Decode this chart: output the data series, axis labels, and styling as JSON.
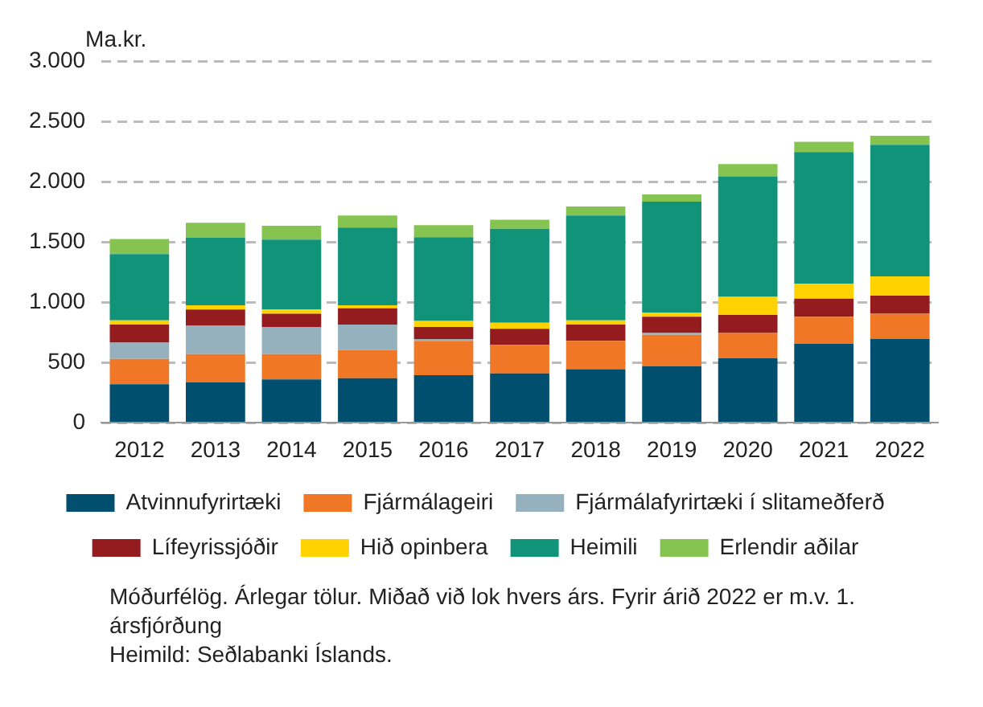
{
  "chart_data": {
    "type": "bar",
    "stacked": true,
    "ylabel": "Ma.kr.",
    "categories": [
      "2012",
      "2013",
      "2014",
      "2015",
      "2016",
      "2017",
      "2018",
      "2019",
      "2020",
      "2021",
      "2022"
    ],
    "series": [
      {
        "name": "Atvinnufyrirtæki",
        "color": "#004f6e",
        "values": [
          320,
          335,
          360,
          370,
          395,
          410,
          445,
          470,
          535,
          655,
          695
        ]
      },
      {
        "name": "Fjármálageiri",
        "color": "#f07726",
        "values": [
          210,
          235,
          210,
          235,
          285,
          235,
          235,
          260,
          210,
          225,
          210
        ]
      },
      {
        "name": "Fjármálafyrirtæki í slitameðferð",
        "color": "#95b1be",
        "values": [
          135,
          235,
          225,
          210,
          15,
          0,
          0,
          15,
          0,
          0,
          0
        ]
      },
      {
        "name": "Lífeyrissjóðir",
        "color": "#941b1e",
        "values": [
          150,
          135,
          110,
          135,
          100,
          135,
          135,
          135,
          150,
          150,
          150
        ]
      },
      {
        "name": "Hið opinbera",
        "color": "#ffd200",
        "values": [
          35,
          35,
          35,
          25,
          50,
          50,
          35,
          35,
          150,
          125,
          160
        ]
      },
      {
        "name": "Heimili",
        "color": "#11937a",
        "values": [
          550,
          560,
          580,
          645,
          695,
          780,
          870,
          920,
          1000,
          1090,
          1090
        ]
      },
      {
        "name": "Erlendir aðilar",
        "color": "#86c452",
        "values": [
          125,
          125,
          115,
          100,
          100,
          75,
          75,
          60,
          100,
          85,
          75
        ]
      }
    ],
    "ylim": [
      0,
      3000
    ],
    "yticks": [
      {
        "value": 0,
        "label": "0"
      },
      {
        "value": 500,
        "label": "500"
      },
      {
        "value": 1000,
        "label": "1.000"
      },
      {
        "value": 1500,
        "label": "1.500"
      },
      {
        "value": 2000,
        "label": "2.000"
      },
      {
        "value": 2500,
        "label": "2.500"
      },
      {
        "value": 3000,
        "label": "3.000"
      }
    ],
    "grid": "y",
    "legend": "bottom",
    "annotations": [
      "Móðurfélög. Árlegar tölur. Miðað við lok hvers árs. Fyrir árið 2022 er m.v. 1. ársfjórðung",
      "Heimild: Seðlabanki Íslands."
    ]
  }
}
